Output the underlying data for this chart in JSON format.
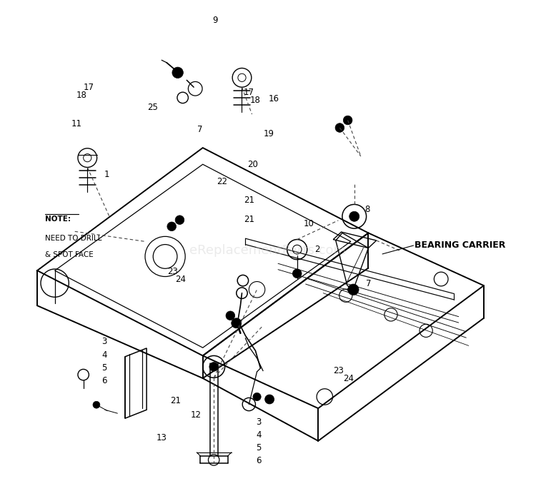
{
  "bg_color": "#ffffff",
  "line_color": "#000000",
  "dashed_color": "#555555",
  "text_color": "#000000",
  "watermark": "eReplacementParts.com",
  "watermark_color": "#cccccc",
  "bearing_carrier_label": "BEARING CARRIER",
  "note_lines": [
    "NOTE:",
    "NEED TO DRILL",
    "& SPOT FACE"
  ]
}
